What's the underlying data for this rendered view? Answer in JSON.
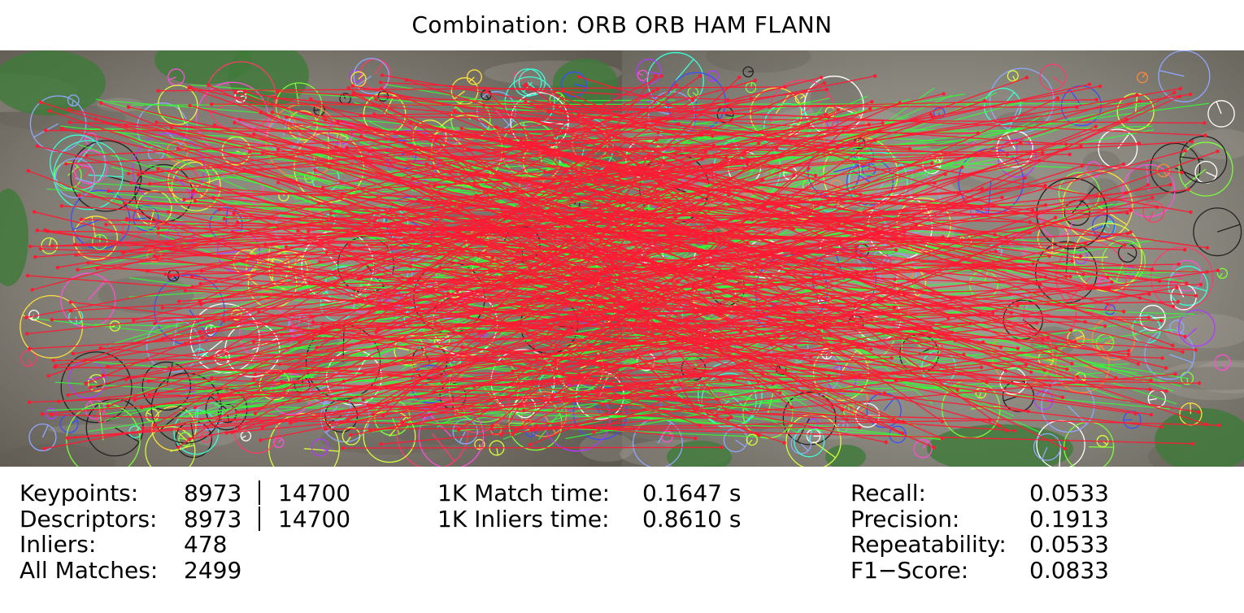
{
  "title": "Combination: ORB ORB HAM FLANN",
  "colors": {
    "match_line": "#ff1a33",
    "inlier_line": "#33ff33",
    "bark": "#8b877c",
    "leaf": "#3f7a3a"
  },
  "stats_left": [
    {
      "label": "Keypoints:",
      "v1": "8973",
      "v2": "14700"
    },
    {
      "label": "Descriptors:",
      "v1": "8973",
      "v2": "14700"
    },
    {
      "label": "Inliers:",
      "v1": "478",
      "v2": ""
    },
    {
      "label": "All Matches:",
      "v1": "2499",
      "v2": ""
    }
  ],
  "stats_mid": [
    {
      "label": "1K Match time:",
      "value": "0.1647 s"
    },
    {
      "label": "1K Inliers time:",
      "value": "0.8610 s"
    }
  ],
  "stats_right": [
    {
      "label": "Recall:",
      "value": "0.0533"
    },
    {
      "label": "Precision:",
      "value": "0.1913"
    },
    {
      "label": "Repeatability:",
      "value": "0.0533"
    },
    {
      "label": "F1−Score:",
      "value": "0.0833"
    }
  ]
}
